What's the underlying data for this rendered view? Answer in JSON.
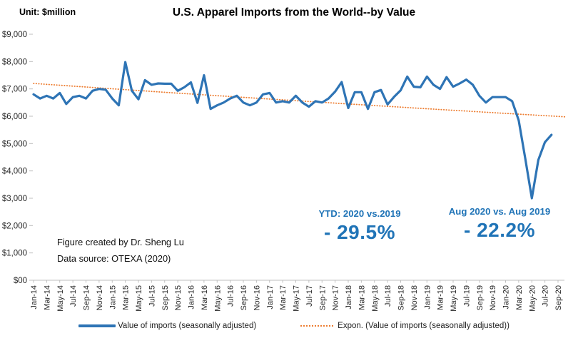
{
  "header": {
    "unit_label": "Unit: $million",
    "title": "U.S. Apparel Imports from the World--by Value"
  },
  "credits": {
    "line1": "Figure created by Dr. Sheng Lu",
    "line2": "Data source: OTEXA (2020)"
  },
  "chart_data": {
    "type": "line",
    "title": "U.S. Apparel Imports from the World--by Value",
    "unit": "$million",
    "xlabel": "",
    "ylabel": "Unit: $million",
    "ylim": [
      0,
      9000
    ],
    "grid": false,
    "legend_position": "bottom",
    "x": [
      "Jan-14",
      "Feb-14",
      "Mar-14",
      "Apr-14",
      "May-14",
      "Jun-14",
      "Jul-14",
      "Aug-14",
      "Sep-14",
      "Oct-14",
      "Nov-14",
      "Dec-14",
      "Jan-15",
      "Feb-15",
      "Mar-15",
      "Apr-15",
      "May-15",
      "Jun-15",
      "Jul-15",
      "Aug-15",
      "Sep-15",
      "Oct-15",
      "Nov-15",
      "Dec-15",
      "Jan-16",
      "Feb-16",
      "Mar-16",
      "Apr-16",
      "May-16",
      "Jun-16",
      "Jul-16",
      "Aug-16",
      "Sep-16",
      "Oct-16",
      "Nov-16",
      "Dec-16",
      "Jan-17",
      "Feb-17",
      "Mar-17",
      "Apr-17",
      "May-17",
      "Jun-17",
      "Jul-17",
      "Aug-17",
      "Sep-17",
      "Oct-17",
      "Nov-17",
      "Dec-17",
      "Jan-18",
      "Feb-18",
      "Mar-18",
      "Apr-18",
      "May-18",
      "Jun-18",
      "Jul-18",
      "Aug-18",
      "Sep-18",
      "Oct-18",
      "Nov-18",
      "Dec-18",
      "Jan-19",
      "Feb-19",
      "Mar-19",
      "Apr-19",
      "May-19",
      "Jun-19",
      "Jul-19",
      "Aug-19",
      "Sep-19",
      "Oct-19",
      "Nov-19",
      "Dec-19",
      "Jan-20",
      "Feb-20",
      "Mar-20",
      "Apr-20",
      "May-20",
      "Jun-20",
      "Jul-20",
      "Aug-20"
    ],
    "series": [
      {
        "name": "Value of imports (seasonally adjusted)",
        "color": "#2E74B5",
        "style": "solid",
        "values": [
          6800,
          6650,
          6750,
          6650,
          6850,
          6450,
          6700,
          6750,
          6650,
          6930,
          7000,
          6970,
          6650,
          6400,
          7980,
          6930,
          6620,
          7320,
          7150,
          7200,
          7190,
          7190,
          6930,
          7060,
          7240,
          6490,
          7500,
          6270,
          6400,
          6500,
          6650,
          6750,
          6500,
          6400,
          6500,
          6800,
          6850,
          6500,
          6550,
          6500,
          6750,
          6500,
          6350,
          6550,
          6500,
          6650,
          6900,
          7250,
          6300,
          6880,
          6880,
          6270,
          6880,
          6960,
          6430,
          6710,
          6950,
          7450,
          7080,
          7060,
          7450,
          7150,
          7000,
          7430,
          7080,
          7200,
          7340,
          7150,
          6750,
          6500,
          6700,
          6700,
          6700,
          6550,
          5850,
          4450,
          3000,
          4400,
          5050,
          5320
        ]
      },
      {
        "name": "Expon. (Value of imports (seasonally adjusted))",
        "color": "#ED7D31",
        "style": "dotted",
        "trend": {
          "start": 7200,
          "end": 5980,
          "span_months": 81
        }
      }
    ],
    "y_tick_labels": [
      "$00",
      "$1,000",
      "$2,000",
      "$3,000",
      "$4,000",
      "$5,000",
      "$6,000",
      "$7,000",
      "$8,000",
      "$9,000"
    ],
    "x_tick_labels": [
      "Jan-14",
      "Mar-14",
      "May-14",
      "Jul-14",
      "Sep-14",
      "Nov-14",
      "Jan-15",
      "Mar-15",
      "May-15",
      "Jul-15",
      "Sep-15",
      "Nov-15",
      "Jan-16",
      "Mar-16",
      "May-16",
      "Jul-16",
      "Sep-16",
      "Nov-16",
      "Jan-17",
      "Mar-17",
      "May-17",
      "Jul-17",
      "Sep-17",
      "Nov-17",
      "Jan-18",
      "Mar-18",
      "May-18",
      "Jul-18",
      "Sep-18",
      "Nov-18",
      "Jan-19",
      "Mar-19",
      "May-19",
      "Jul-19",
      "Sep-19",
      "Nov-19",
      "Jan-20",
      "Mar-20",
      "May-20",
      "Jul-20",
      "Sep-20"
    ],
    "annotations": [
      {
        "label": "YTD: 2020  vs.2019",
        "value": "- 29.5%",
        "color": "#2074B7"
      },
      {
        "label": "Aug 2020 vs. Aug 2019",
        "value": "- 22.2%",
        "color": "#2074B7"
      }
    ]
  }
}
